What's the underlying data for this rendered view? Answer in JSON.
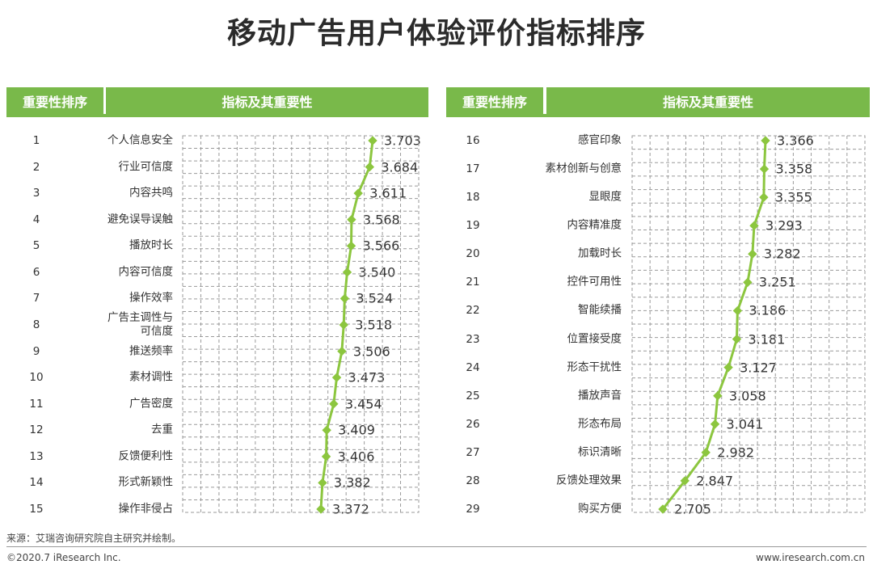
{
  "title": "移动广告用户体验评价指标排序",
  "headers": {
    "rank": "重要性排序",
    "indicator": "指标及其重要性"
  },
  "chart_data": [
    {
      "type": "line",
      "ylim": [
        2.6,
        3.8
      ],
      "grid": true,
      "categories": [
        "个人信息安全",
        "行业可信度",
        "内容共鸣",
        "避免误导误触",
        "播放时长",
        "内容可信度",
        "操作效率",
        "广告主调性与可信度",
        "推送频率",
        "素材调性",
        "广告密度",
        "去重",
        "反馈便利性",
        "形式新颖性",
        "操作非侵占"
      ],
      "category_lines": [
        [
          "个人信息安全"
        ],
        [
          "行业可信度"
        ],
        [
          "内容共鸣"
        ],
        [
          "避免误导误触"
        ],
        [
          "播放时长"
        ],
        [
          "内容可信度"
        ],
        [
          "操作效率"
        ],
        [
          "广告主调性与",
          "可信度"
        ],
        [
          "推送频率"
        ],
        [
          "素材调性"
        ],
        [
          "广告密度"
        ],
        [
          "去重"
        ],
        [
          "反馈便利性"
        ],
        [
          "形式新颖性"
        ],
        [
          "操作非侵占"
        ]
      ],
      "ranks": [
        "1",
        "2",
        "3",
        "4",
        "5",
        "6",
        "7",
        "8",
        "9",
        "10",
        "11",
        "12",
        "13",
        "14",
        "15"
      ],
      "values": [
        3.703,
        3.684,
        3.611,
        3.568,
        3.566,
        3.54,
        3.524,
        3.518,
        3.506,
        3.473,
        3.454,
        3.409,
        3.406,
        3.382,
        3.372
      ],
      "labels": [
        "3.703",
        "3.684",
        "3.611",
        "3.568",
        "3.566",
        "3.540",
        "3.524",
        "3.518",
        "3.506",
        "3.473",
        "3.454",
        "3.409",
        "3.406",
        "3.382",
        "3.372"
      ]
    },
    {
      "type": "line",
      "ylim": [
        2.6,
        3.8
      ],
      "grid": true,
      "categories": [
        "感官印象",
        "素材创新与创意",
        "显眼度",
        "内容精准度",
        "加载时长",
        "控件可用性",
        "智能续播",
        "位置接受度",
        "形态干扰性",
        "播放声音",
        "形态布局",
        "标识清晰",
        "反馈处理效果",
        "购买方便"
      ],
      "category_lines": [
        [
          "感官印象"
        ],
        [
          "素材创新与创意"
        ],
        [
          "显眼度"
        ],
        [
          "内容精准度"
        ],
        [
          "加载时长"
        ],
        [
          "控件可用性"
        ],
        [
          "智能续播"
        ],
        [
          "位置接受度"
        ],
        [
          "形态干扰性"
        ],
        [
          "播放声音"
        ],
        [
          "形态布局"
        ],
        [
          "标识清晰"
        ],
        [
          "反馈处理效果"
        ],
        [
          "购买方便"
        ]
      ],
      "ranks": [
        "16",
        "17",
        "18",
        "19",
        "20",
        "21",
        "22",
        "23",
        "24",
        "25",
        "26",
        "27",
        "28",
        "29"
      ],
      "values": [
        3.366,
        3.358,
        3.355,
        3.293,
        3.282,
        3.251,
        3.186,
        3.181,
        3.127,
        3.058,
        3.041,
        2.982,
        2.847,
        2.705
      ],
      "labels": [
        "3.366",
        "3.358",
        "3.355",
        "3.293",
        "3.282",
        "3.251",
        "3.186",
        "3.181",
        "3.127",
        "3.058",
        "3.041",
        "2.982",
        "2.847",
        "2.705"
      ]
    }
  ],
  "footer": {
    "source": "来源：艾瑞咨询研究院自主研究并绘制。",
    "copyright": "©2020.7 iResearch Inc.",
    "website": "www.iresearch.com.cn"
  },
  "colors": {
    "accent": "#79b94a",
    "line": "#8cc63f",
    "grid": "#9a9a9a"
  }
}
